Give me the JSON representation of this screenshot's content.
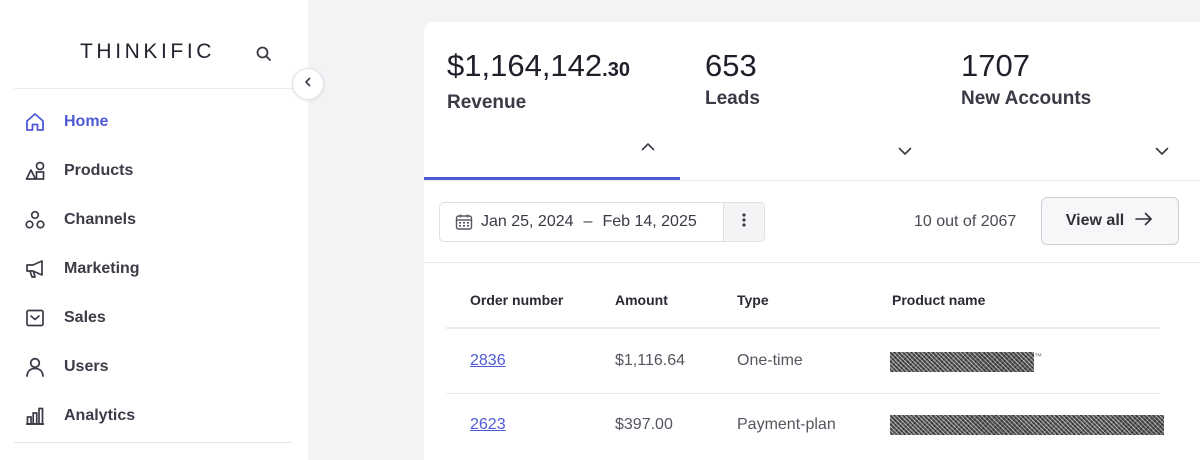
{
  "sidebar": {
    "brand": "THINKIFIC",
    "search_icon": "search-icon",
    "items": [
      {
        "label": "Home",
        "icon": "home-icon",
        "active": true
      },
      {
        "label": "Products",
        "icon": "shapes-icon"
      },
      {
        "label": "Channels",
        "icon": "channels-icon"
      },
      {
        "label": "Marketing",
        "icon": "megaphone-icon"
      },
      {
        "label": "Sales",
        "icon": "inbox-icon"
      },
      {
        "label": "Users",
        "icon": "user-icon"
      },
      {
        "label": "Analytics",
        "icon": "bar-chart-icon"
      }
    ]
  },
  "metrics": [
    {
      "value": "$1,164,142",
      "cents": ".30",
      "label": "Revenue",
      "expanded": true
    },
    {
      "value": "653",
      "label": "Leads",
      "expanded": false
    },
    {
      "value": "1707",
      "label": "New Accounts",
      "expanded": false
    }
  ],
  "filters": {
    "date_start": "Jan 25, 2024",
    "date_separator": "–",
    "date_end": "Feb 14, 2025",
    "count_text": "10 out of 2067",
    "view_all_label": "View all"
  },
  "table": {
    "columns": [
      "Order number",
      "Amount",
      "Type",
      "Product name"
    ],
    "rows": [
      {
        "order": "2836",
        "amount": "$1,116.64",
        "type": "One-time",
        "product_suffix": "™"
      },
      {
        "order": "2623",
        "amount": "$397.00",
        "type": "Payment-plan"
      }
    ]
  },
  "colors": {
    "accent": "#4f5bd5",
    "sidebar_bg": "#ffffff",
    "page_bg": "#f3f3f5"
  }
}
